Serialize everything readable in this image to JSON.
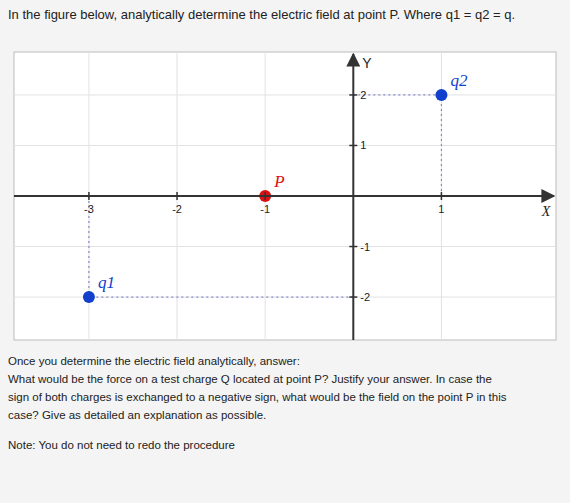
{
  "chart_data": {
    "type": "scatter",
    "title": "In the figure below, analytically determine the electric field at point P. Where q1 = q2 = q.",
    "xlabel": "X",
    "ylabel": "Y",
    "xlim": [
      -3.85,
      2.3
    ],
    "ylim": [
      -2.85,
      2.85
    ],
    "xticks": [
      -3,
      -2,
      -1,
      1
    ],
    "yticks": [
      -2,
      -1,
      1,
      2
    ],
    "grid": true,
    "series": [
      {
        "name": "q1",
        "color": "#1040cc",
        "x": [
          -3
        ],
        "values": [
          -2
        ]
      },
      {
        "name": "q2",
        "color": "#1040cc",
        "x": [
          1
        ],
        "values": [
          2
        ]
      },
      {
        "name": "P",
        "color": "#dd1111",
        "x": [
          -1
        ],
        "values": [
          0
        ]
      }
    ],
    "annotations": [
      "Once you determine the electric field analytically, answer:",
      "What would be the force on a test charge Q located at point P? Justify your answer. In case the",
      "sign of both charges is exchanged to a negative sign, what would be the field on the point P in this",
      "case? Give as detailed an explanation as possible.",
      "Note: You do not need to redo the procedure"
    ]
  }
}
